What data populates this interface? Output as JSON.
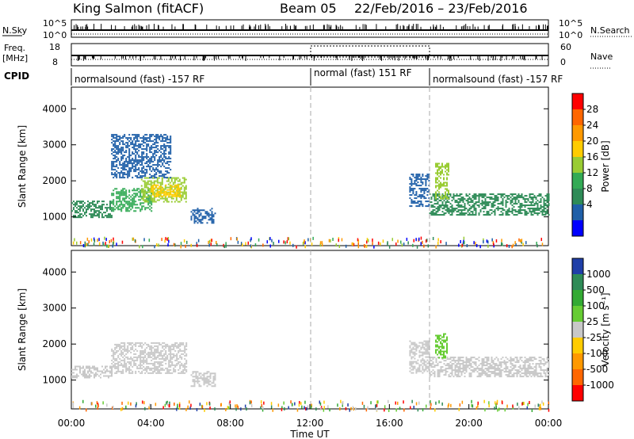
{
  "header": {
    "station": "King Salmon (fitACF)",
    "beam": "Beam 05",
    "date_range": "22/Feb/2016 – 23/Feb/2016"
  },
  "strips": {
    "nsky_label": "N.Sky",
    "nsky_ticks": [
      "10^5",
      "10^0"
    ],
    "nsearch_label": "N.Search",
    "nsearch_ticks": [
      "10^5",
      "10^0"
    ],
    "freq_label": "Freq.",
    "freq_unit": "[MHz]",
    "freq_ticks": [
      "18",
      "8"
    ],
    "nave_label": "Nave",
    "nave_ticks": [
      "60",
      "0"
    ],
    "cpid_label": "CPID",
    "cpid_segments": [
      {
        "text": "normalsound (fast) -157 RF",
        "start_h": 0,
        "end_h": 12
      },
      {
        "text": "normal (fast) 151 RF",
        "start_h": 12,
        "end_h": 18
      },
      {
        "text": "normalsound (fast) -157 RF",
        "start_h": 18,
        "end_h": 24
      }
    ]
  },
  "power_scale": {
    "label": "Power [dB]",
    "ticks": [
      "28",
      "24",
      "20",
      "16",
      "12",
      "8",
      "4"
    ],
    "colors": [
      "#ff0000",
      "#ff6600",
      "#ff9900",
      "#ffcc00",
      "#99cc33",
      "#33aa55",
      "#2e8b57",
      "#1f5fa8",
      "#0000ff"
    ]
  },
  "velocity_scale": {
    "label": "Velocity [m s⁻¹]",
    "ticks": [
      "1000",
      "500",
      "100",
      "25",
      "-25",
      "-100",
      "-500",
      "-1000"
    ],
    "colors": [
      "#1f3fa8",
      "#2e8b57",
      "#33aa33",
      "#66cc33",
      "#c8c8c8",
      "#ffcc00",
      "#ff9900",
      "#ff6600",
      "#ff0000"
    ]
  },
  "chart_data": [
    {
      "type": "heatmap",
      "panel": "power",
      "ylabel": "Slant Range [km]",
      "yticks": [
        1000,
        2000,
        3000,
        4000
      ],
      "ylim": [
        200,
        4600
      ],
      "xlim": [
        0,
        24
      ],
      "dashed_lines_h": [
        12,
        18
      ],
      "echo_regions": [
        {
          "t0": 0.0,
          "t1": 2.0,
          "r0": 1000,
          "r1": 1450,
          "color": "#2e8b57"
        },
        {
          "t0": 2.0,
          "t1": 4.0,
          "r0": 1150,
          "r1": 1800,
          "color": "#33aa55"
        },
        {
          "t0": 3.5,
          "t1": 5.8,
          "r0": 1400,
          "r1": 2100,
          "color": "#99cc33"
        },
        {
          "t0": 4.0,
          "t1": 5.5,
          "r0": 1550,
          "r1": 1900,
          "color": "#ffcc00"
        },
        {
          "t0": 6.0,
          "t1": 7.2,
          "r0": 850,
          "r1": 1250,
          "color": "#1f5fa8"
        },
        {
          "t0": 2.0,
          "t1": 5.0,
          "r0": 2100,
          "r1": 3300,
          "color": "#1f5fa8"
        },
        {
          "t0": 17.0,
          "t1": 18.0,
          "r0": 1300,
          "r1": 2200,
          "color": "#1f5fa8"
        },
        {
          "t0": 18.0,
          "t1": 24.0,
          "r0": 1050,
          "r1": 1650,
          "color": "#2e8b57"
        },
        {
          "t0": 18.3,
          "t1": 19.0,
          "r0": 1500,
          "r1": 2500,
          "color": "#99cc33"
        }
      ]
    },
    {
      "type": "heatmap",
      "panel": "velocity",
      "ylabel": "Slant Range [km]",
      "yticks": [
        1000,
        2000,
        3000,
        4000
      ],
      "ylim": [
        200,
        4600
      ],
      "xlim": [
        0,
        24
      ],
      "xlabel": "Time UT",
      "xtick_labels": [
        "00:00",
        "04:00",
        "08:00",
        "12:00",
        "16:00",
        "20:00",
        "00:00"
      ],
      "dashed_lines_h": [
        12,
        18
      ],
      "echo_regions": [
        {
          "t0": 0.0,
          "t1": 2.0,
          "r0": 1050,
          "r1": 1400,
          "color": "#c8c8c8"
        },
        {
          "t0": 2.0,
          "t1": 5.8,
          "r0": 1200,
          "r1": 2050,
          "color": "#c8c8c8"
        },
        {
          "t0": 6.0,
          "t1": 7.2,
          "r0": 850,
          "r1": 1250,
          "color": "#c8c8c8"
        },
        {
          "t0": 17.0,
          "t1": 18.0,
          "r0": 1200,
          "r1": 2100,
          "color": "#c8c8c8"
        },
        {
          "t0": 18.0,
          "t1": 24.0,
          "r0": 1100,
          "r1": 1650,
          "color": "#c8c8c8"
        },
        {
          "t0": 18.3,
          "t1": 18.9,
          "r0": 1600,
          "r1": 2300,
          "color": "#66cc33"
        }
      ]
    }
  ]
}
